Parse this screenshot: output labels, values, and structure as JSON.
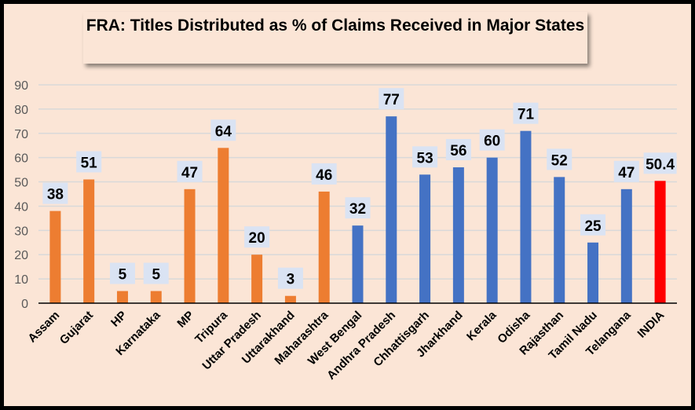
{
  "chart_data": {
    "type": "bar",
    "title": "FRA: Titles Distributed as % of Claims Received in Major States",
    "xlabel": "",
    "ylabel": "",
    "ylim": [
      0,
      90
    ],
    "yticks": [
      0,
      10,
      20,
      30,
      40,
      50,
      60,
      70,
      80,
      90
    ],
    "grid": true,
    "categories": [
      "Assam",
      "Gujarat",
      "HP",
      "Karnataka",
      "MP",
      "Tripura",
      "Uttar Pradesh",
      "Uttarakhand",
      "Maharashtra",
      "West Bengal",
      "Andhra Pradesh",
      "Chhattisgarh",
      "Jharkhand",
      "Kerala",
      "Odisha",
      "Rajasthan",
      "Tamil Nadu",
      "Telangana",
      "INDIA"
    ],
    "values": [
      38,
      51,
      5,
      5,
      47,
      64,
      20,
      3,
      46,
      32,
      77,
      53,
      56,
      60,
      71,
      52,
      25,
      47,
      50.4
    ],
    "data_labels": [
      "38",
      "51",
      "5",
      "5",
      "47",
      "64",
      "20",
      "3",
      "46",
      "32",
      "77",
      "53",
      "56",
      "60",
      "71",
      "52",
      "25",
      "47",
      "50.4"
    ],
    "groups": [
      "orange",
      "orange",
      "orange",
      "orange",
      "orange",
      "orange",
      "orange",
      "orange",
      "orange",
      "blue",
      "blue",
      "blue",
      "blue",
      "blue",
      "blue",
      "blue",
      "blue",
      "blue",
      "red"
    ],
    "colors": {
      "orange": "#ed7d31",
      "blue": "#4472c4",
      "red": "#ff0000",
      "label_bg": "#dae3f3",
      "grid": "#d9d9d9",
      "background": "#fbe5d6"
    }
  }
}
